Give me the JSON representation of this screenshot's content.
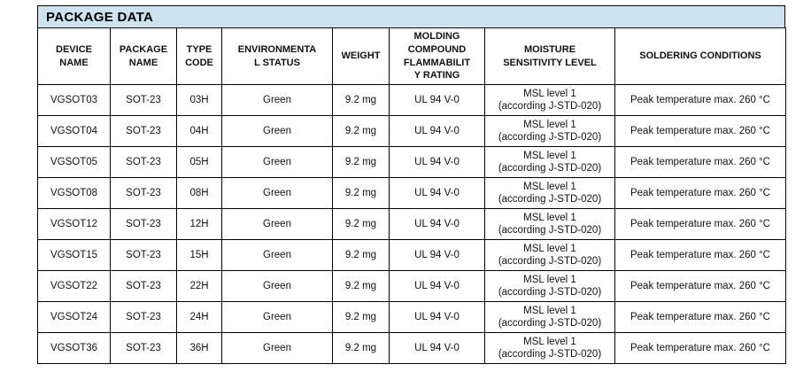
{
  "title": "PACKAGE DATA",
  "colors": {
    "title_bar_background": "#cce3f0",
    "border": "#000000",
    "text": "#111111",
    "page_background": "#ffffff"
  },
  "table": {
    "columns": [
      {
        "key": "device_name",
        "label": "DEVICE\nNAME"
      },
      {
        "key": "package_name",
        "label": "PACKAGE\nNAME"
      },
      {
        "key": "type_code",
        "label": "TYPE\nCODE"
      },
      {
        "key": "environmental_status",
        "label": "ENVIRONMENTA\nL STATUS"
      },
      {
        "key": "weight",
        "label": "WEIGHT"
      },
      {
        "key": "molding_compound_flammability_rating",
        "label": "MOLDING\nCOMPOUND\nFLAMMABILIT\nY RATING"
      },
      {
        "key": "moisture_sensitivity_level",
        "label": "MOISTURE\nSENSITIVITY LEVEL"
      },
      {
        "key": "soldering_conditions",
        "label": "SOLDERING CONDITIONS"
      }
    ],
    "rows": [
      {
        "device_name": "VGSOT03",
        "package_name": "SOT-23",
        "type_code": "03H",
        "environmental_status": "Green",
        "weight": "9.2 mg",
        "molding_compound_flammability_rating": "UL 94 V-0",
        "moisture_sensitivity_level": "MSL level 1\n(according J-STD-020)",
        "soldering_conditions": "Peak temperature max. 260 °C"
      },
      {
        "device_name": "VGSOT04",
        "package_name": "SOT-23",
        "type_code": "04H",
        "environmental_status": "Green",
        "weight": "9.2 mg",
        "molding_compound_flammability_rating": "UL 94 V-0",
        "moisture_sensitivity_level": "MSL level 1\n(according J-STD-020)",
        "soldering_conditions": "Peak temperature max. 260 °C"
      },
      {
        "device_name": "VGSOT05",
        "package_name": "SOT-23",
        "type_code": "05H",
        "environmental_status": "Green",
        "weight": "9.2 mg",
        "molding_compound_flammability_rating": "UL 94 V-0",
        "moisture_sensitivity_level": "MSL level 1\n(according J-STD-020)",
        "soldering_conditions": "Peak temperature max. 260 °C"
      },
      {
        "device_name": "VGSOT08",
        "package_name": "SOT-23",
        "type_code": "08H",
        "environmental_status": "Green",
        "weight": "9.2 mg",
        "molding_compound_flammability_rating": "UL 94 V-0",
        "moisture_sensitivity_level": "MSL level 1\n(according J-STD-020)",
        "soldering_conditions": "Peak temperature max. 260 °C"
      },
      {
        "device_name": "VGSOT12",
        "package_name": "SOT-23",
        "type_code": "12H",
        "environmental_status": "Green",
        "weight": "9.2 mg",
        "molding_compound_flammability_rating": "UL 94 V-0",
        "moisture_sensitivity_level": "MSL level 1\n(according J-STD-020)",
        "soldering_conditions": "Peak temperature max. 260 °C"
      },
      {
        "device_name": "VGSOT15",
        "package_name": "SOT-23",
        "type_code": "15H",
        "environmental_status": "Green",
        "weight": "9.2 mg",
        "molding_compound_flammability_rating": "UL 94 V-0",
        "moisture_sensitivity_level": "MSL level 1\n(according J-STD-020)",
        "soldering_conditions": "Peak temperature max. 260 °C"
      },
      {
        "device_name": "VGSOT22",
        "package_name": "SOT-23",
        "type_code": "22H",
        "environmental_status": "Green",
        "weight": "9.2 mg",
        "molding_compound_flammability_rating": "UL 94 V-0",
        "moisture_sensitivity_level": "MSL level 1\n(according J-STD-020)",
        "soldering_conditions": "Peak temperature max. 260 °C"
      },
      {
        "device_name": "VGSOT24",
        "package_name": "SOT-23",
        "type_code": "24H",
        "environmental_status": "Green",
        "weight": "9.2 mg",
        "molding_compound_flammability_rating": "UL 94 V-0",
        "moisture_sensitivity_level": "MSL level 1\n(according J-STD-020)",
        "soldering_conditions": "Peak temperature max. 260 °C"
      },
      {
        "device_name": "VGSOT36",
        "package_name": "SOT-23",
        "type_code": "36H",
        "environmental_status": "Green",
        "weight": "9.2 mg",
        "molding_compound_flammability_rating": "UL 94 V-0",
        "moisture_sensitivity_level": "MSL level 1\n(according J-STD-020)",
        "soldering_conditions": "Peak temperature max. 260 °C"
      }
    ]
  }
}
